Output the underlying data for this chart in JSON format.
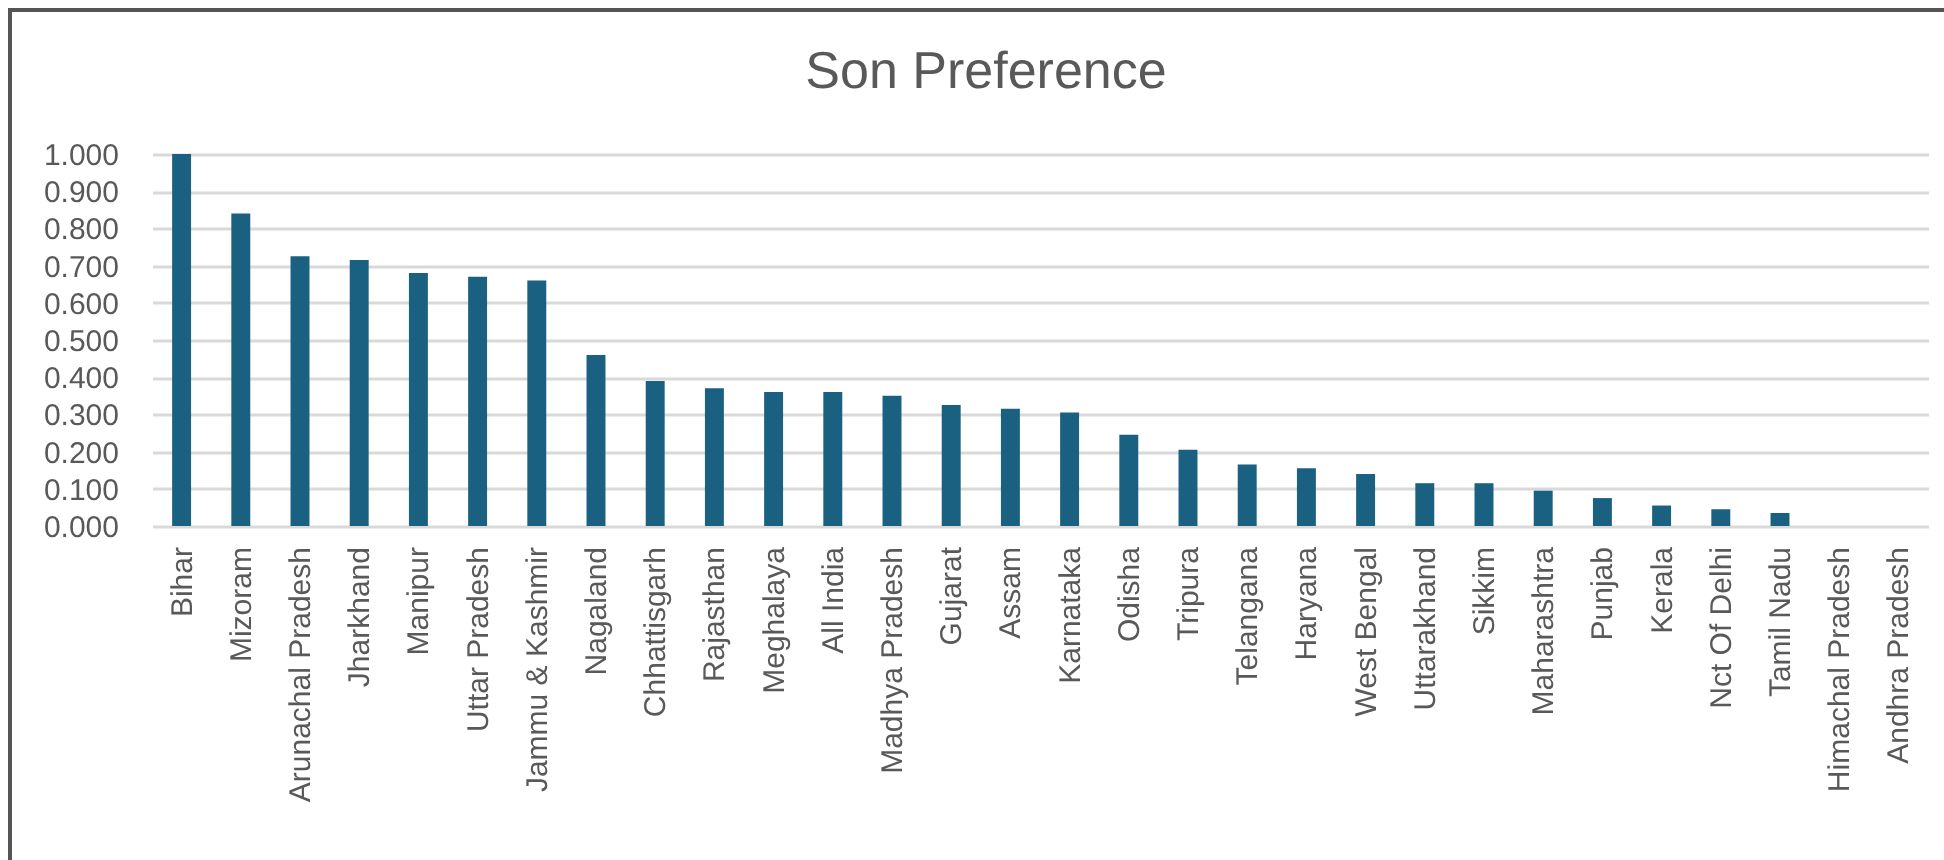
{
  "chart_data": {
    "type": "bar",
    "title": "Son Preference",
    "categories": [
      "Bihar",
      "Mizoram",
      "Arunachal Pradesh",
      "Jharkhand",
      "Manipur",
      "Uttar Pradesh",
      "Jammu & Kashmir",
      "Nagaland",
      "Chhattisgarh",
      "Rajasthan",
      "Meghalaya",
      "All India",
      "Madhya Pradesh",
      "Gujarat",
      "Assam",
      "Karnataka",
      "Odisha",
      "Tripura",
      "Telangana",
      "Haryana",
      "West Bengal",
      "Uttarakhand",
      "Sikkim",
      "Maharashtra",
      "Punjab",
      "Kerala",
      "Nct Of Delhi",
      "Tamil Nadu",
      "Himachal Pradesh",
      "Andhra Pradesh"
    ],
    "values": [
      1.0,
      0.84,
      0.725,
      0.715,
      0.68,
      0.67,
      0.66,
      0.46,
      0.39,
      0.37,
      0.36,
      0.36,
      0.35,
      0.325,
      0.315,
      0.305,
      0.245,
      0.205,
      0.165,
      0.155,
      0.14,
      0.115,
      0.115,
      0.095,
      0.075,
      0.055,
      0.045,
      0.035,
      0,
      0
    ],
    "color": "#1a6080",
    "ylim": [
      0,
      1
    ],
    "yticks": [
      {
        "value": 0,
        "label": "0.000"
      },
      {
        "value": 0.1,
        "label": "0.100"
      },
      {
        "value": 0.2,
        "label": "0.200"
      },
      {
        "value": 0.3,
        "label": "0.300"
      },
      {
        "value": 0.4,
        "label": "0.400"
      },
      {
        "value": 0.5,
        "label": "0.500"
      },
      {
        "value": 0.6,
        "label": "0.600"
      },
      {
        "value": 0.7,
        "label": "0.700"
      },
      {
        "value": 0.8,
        "label": "0.800"
      },
      {
        "value": 0.9,
        "label": "0.900"
      },
      {
        "value": 1,
        "label": "1.000"
      }
    ],
    "grid": "y"
  }
}
